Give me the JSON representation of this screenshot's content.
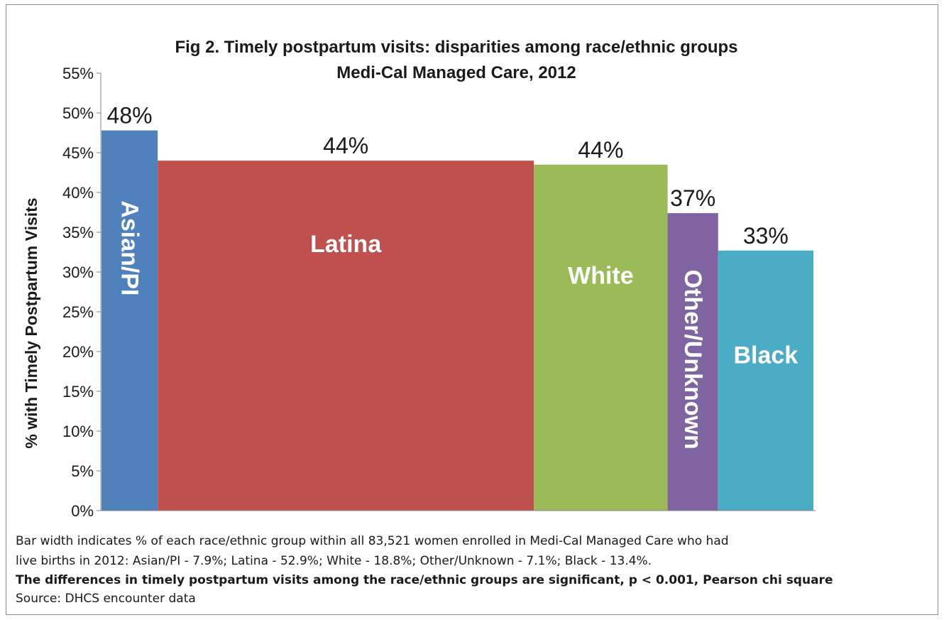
{
  "chart_data": {
    "type": "bar",
    "variable_width": true,
    "title": "Fig 2.  Timely postpartum visits: disparities among race/ethnic groups",
    "subtitle": "Medi-Cal Managed Care, 2012",
    "ylabel": "%  with  Timely  Postpartum Visits",
    "xlabel": "",
    "ylim": [
      0,
      55
    ],
    "ytick_step": 5,
    "ytick_labels": [
      "0%",
      "5%",
      "10%",
      "15%",
      "20%",
      "25%",
      "30%",
      "35%",
      "40%",
      "45%",
      "50%",
      "55%"
    ],
    "grid": false,
    "categories": [
      "Asian/PI",
      "Latina",
      "White",
      "Other/Unknown",
      "Black"
    ],
    "values": [
      47.8,
      44.0,
      43.5,
      37.4,
      32.7
    ],
    "data_labels": [
      "48%",
      "44%",
      "44%",
      "37%",
      "33%"
    ],
    "widths": [
      7.9,
      52.9,
      18.8,
      7.1,
      13.4
    ],
    "colors": [
      "#4f81bd",
      "#c0504d",
      "#9bbb59",
      "#8064a2",
      "#4bacc6"
    ],
    "label_orientation": [
      "vertical",
      "horizontal",
      "horizontal",
      "vertical",
      "horizontal"
    ],
    "label_y": [
      33,
      33.5,
      29.5,
      19,
      19.5
    ]
  },
  "notes": {
    "line1": "Bar width indicates % of each race/ethnic group within  all 83,521 women enrolled in Medi-Cal Managed Care who had",
    "line2": "live births in 2012:   Asian/PI - 7.9%; Latina - 52.9%; White - 18.8%; Other/Unknown - 7.1%; Black - 13.4%.",
    "line3": "The differences in timely postpartum visits among the race/ethnic groups are significant, p < 0.001, Pearson chi square",
    "line4": "Source:  DHCS encounter data"
  }
}
